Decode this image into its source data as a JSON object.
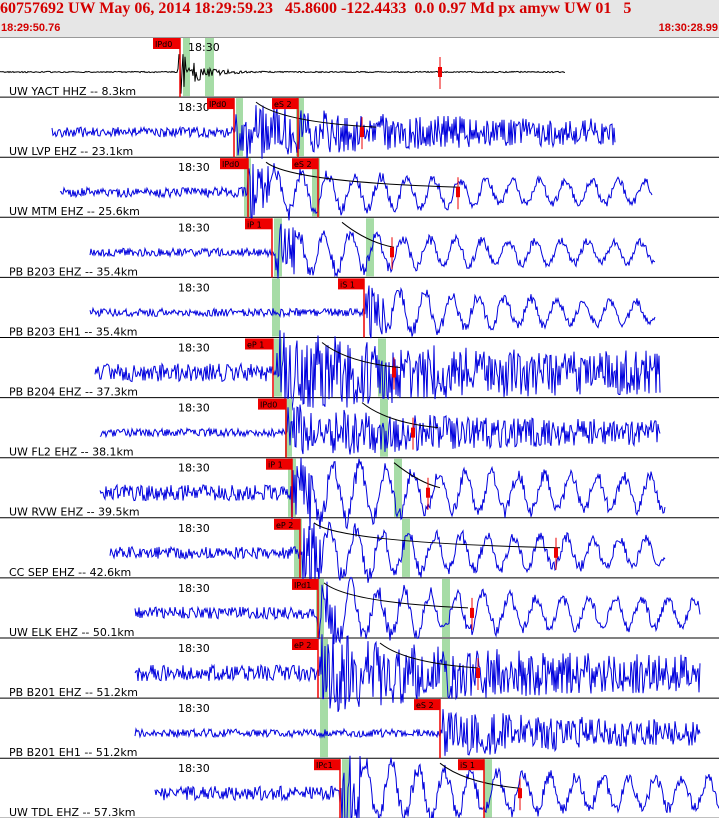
{
  "header": {
    "title": "60757692 UW May 06, 2014 18:29:59.23   45.8600 -122.4433  0.0 0.97 Md px amyw UW 01   5",
    "start_time": "18:29:50.76",
    "end_time": "18:30:28.99"
  },
  "colors": {
    "trace_reference": "#000000",
    "trace": "#0000dd",
    "pick_label_bg": "#ee0000",
    "window_shade": "#a6dca6",
    "coda": "#000000"
  },
  "chart_data": {
    "type": "line",
    "title": "",
    "x_range": [
      "18:29:50.76",
      "18:30:28.99"
    ],
    "time_tick_label": "18:30",
    "channels": [
      {
        "label": "UW YACT HHZ -- 8.3km",
        "pick_p": "IPd0",
        "pick_s": ""
      },
      {
        "label": "UW LVP EHZ -- 23.1km",
        "pick_p": "IPd0",
        "pick_s": "eS 2"
      },
      {
        "label": "UW MTM EHZ -- 25.6km",
        "pick_p": "IPd0",
        "pick_s": "eS 2"
      },
      {
        "label": "PB B203 EHZ -- 35.4km",
        "pick_p": "iP 1",
        "pick_s": ""
      },
      {
        "label": "PB B203 EH1 -- 35.4km",
        "pick_p": "",
        "pick_s": "iS 1"
      },
      {
        "label": "PB B204 EHZ -- 37.3km",
        "pick_p": "eP 1",
        "pick_s": ""
      },
      {
        "label": "UW FL2 EHZ -- 38.1km",
        "pick_p": "IPd0",
        "pick_s": ""
      },
      {
        "label": "UW RVW EHZ -- 39.5km",
        "pick_p": "iP 1",
        "pick_s": ""
      },
      {
        "label": "CC SEP EHZ -- 42.6km",
        "pick_p": "eP 2",
        "pick_s": ""
      },
      {
        "label": "UW ELK EHZ -- 50.1km",
        "pick_p": "IPd1",
        "pick_s": ""
      },
      {
        "label": "PB B201 EHZ -- 51.2km",
        "pick_p": "eP 2",
        "pick_s": ""
      },
      {
        "label": "PB B201 EH1 -- 51.2km",
        "pick_p": "",
        "pick_s": "eS 2"
      },
      {
        "label": "UW TDL EHZ -- 57.3km",
        "pick_p": "IPc1",
        "pick_s": "iS 1"
      }
    ]
  }
}
